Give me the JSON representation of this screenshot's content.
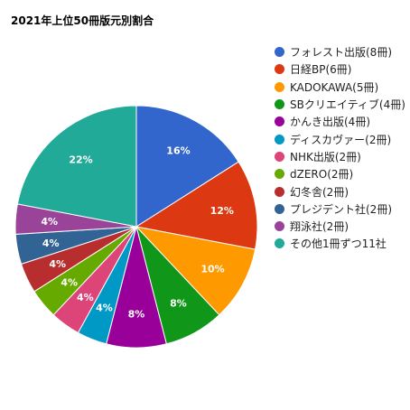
{
  "chart_data": {
    "type": "pie",
    "title": "2021年上位50冊版元別割合",
    "slices": [
      {
        "label": "フォレスト出版(8冊)",
        "value": 16,
        "data_label": "16%",
        "color": "#3366cc"
      },
      {
        "label": "日経BP(6冊)",
        "value": 12,
        "data_label": "12%",
        "color": "#dc3912"
      },
      {
        "label": "KADOKAWA(5冊)",
        "value": 10,
        "data_label": "10%",
        "color": "#ff9900"
      },
      {
        "label": "SBクリエイティブ(4冊)",
        "value": 8,
        "data_label": "8%",
        "color": "#109618"
      },
      {
        "label": "かんき出版(4冊)",
        "value": 8,
        "data_label": "8%",
        "color": "#990099"
      },
      {
        "label": "ディスカヴァー(2冊)",
        "value": 4,
        "data_label": "4%",
        "color": "#0099c6"
      },
      {
        "label": "NHK出版(2冊)",
        "value": 4,
        "data_label": "4%",
        "color": "#dd4477"
      },
      {
        "label": "dZERO(2冊)",
        "value": 4,
        "data_label": "4%",
        "color": "#66aa00"
      },
      {
        "label": "幻冬舎(2冊)",
        "value": 4,
        "data_label": "4%",
        "color": "#b82e2e"
      },
      {
        "label": "プレジデント社(2冊)",
        "value": 4,
        "data_label": "4%",
        "color": "#316395"
      },
      {
        "label": "翔泳社(2冊)",
        "value": 4,
        "data_label": "4%",
        "color": "#994499"
      },
      {
        "label": "その他1冊ずつ11社",
        "value": 22,
        "data_label": "22%",
        "color": "#22aa99"
      }
    ],
    "legend_position": "right"
  }
}
